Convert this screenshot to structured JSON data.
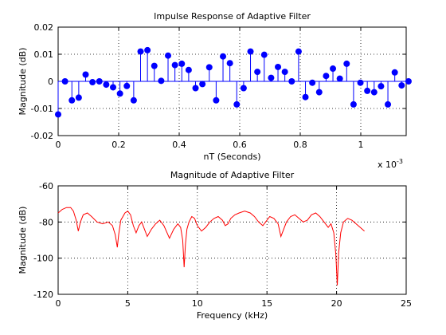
{
  "chart_data": [
    {
      "type": "stem",
      "title": "Impulse Response of Adaptive Filter",
      "xlabel": "nT (Seconds)",
      "ylabel": "Magnitude (dB)",
      "x_exponent": "x 10",
      "x_exponent_power": "-3",
      "xlim": [
        0,
        0.00115
      ],
      "ylim": [
        -0.02,
        0.02
      ],
      "xticks": [
        0,
        0.0002,
        0.0004,
        0.0006,
        0.0008,
        0.001
      ],
      "xtick_labels": [
        "0",
        "0.2",
        "0.4",
        "0.6",
        "0.8",
        "1"
      ],
      "yticks": [
        -0.02,
        -0.01,
        0,
        0.01,
        0.02
      ],
      "ytick_labels": [
        "-0.02",
        "-0.01",
        "0",
        "0.01",
        "0.02"
      ],
      "grid": true,
      "color": "#0000ff",
      "sample_interval": 2.27e-05,
      "values": [
        -0.0122,
        0.0,
        -0.007,
        -0.006,
        0.0025,
        -0.0003,
        0.0,
        -0.0012,
        -0.0022,
        -0.0045,
        -0.0017,
        -0.007,
        0.011,
        0.0115,
        0.0057,
        0.0002,
        0.0095,
        0.006,
        0.0065,
        0.0042,
        -0.0025,
        -0.001,
        0.0052,
        -0.007,
        0.0092,
        0.0067,
        -0.0085,
        -0.0025,
        0.011,
        0.0035,
        0.0098,
        0.0013,
        0.0053,
        0.0035,
        0.0,
        0.011,
        -0.0058,
        -0.0005,
        -0.004,
        0.002,
        0.0047,
        0.001,
        0.0065,
        -0.0085,
        -0.0005,
        -0.0035,
        -0.004,
        -0.0018,
        -0.0085,
        0.0033,
        -0.0015,
        0.0
      ]
    },
    {
      "type": "line",
      "title": "Magnitude of Adaptive Filter",
      "xlabel": "Frequency (kHz)",
      "ylabel": "Magnitude (dB)",
      "xlim": [
        0,
        25
      ],
      "ylim": [
        -120,
        -60
      ],
      "xticks": [
        0,
        5,
        10,
        15,
        20,
        25
      ],
      "xtick_labels": [
        "0",
        "5",
        "10",
        "15",
        "20",
        "25"
      ],
      "yticks": [
        -120,
        -100,
        -80,
        -60
      ],
      "ytick_labels": [
        "-120",
        "-100",
        "-80",
        "-60"
      ],
      "grid": true,
      "color": "#ff0000",
      "x": [
        0,
        0.3,
        0.6,
        0.9,
        1.1,
        1.3,
        1.45,
        1.6,
        1.8,
        2.1,
        2.4,
        2.8,
        3.2,
        3.6,
        3.9,
        4.1,
        4.25,
        4.35,
        4.5,
        4.8,
        5.0,
        5.2,
        5.4,
        5.6,
        5.8,
        6.0,
        6.2,
        6.4,
        6.7,
        7.0,
        7.3,
        7.6,
        8.0,
        8.3,
        8.6,
        8.8,
        8.95,
        9.05,
        9.15,
        9.25,
        9.4,
        9.6,
        9.8,
        10.0,
        10.3,
        10.6,
        10.9,
        11.2,
        11.5,
        11.8,
        12.0,
        12.2,
        12.4,
        12.7,
        13.0,
        13.4,
        13.8,
        14.1,
        14.4,
        14.7,
        14.9,
        15.2,
        15.5,
        15.8,
        16.0,
        16.2,
        16.4,
        16.7,
        17.0,
        17.3,
        17.6,
        17.9,
        18.2,
        18.5,
        18.8,
        19.1,
        19.4,
        19.6,
        19.8,
        19.95,
        20.05,
        20.15,
        20.3,
        20.5,
        20.8,
        21.1,
        21.4,
        21.7,
        22.0
      ],
      "y": [
        -75,
        -73,
        -72,
        -72,
        -74,
        -79,
        -85,
        -80,
        -76,
        -75,
        -77,
        -80,
        -81,
        -80,
        -82,
        -87,
        -94,
        -87,
        -79,
        -75,
        -74,
        -76,
        -82,
        -86,
        -82,
        -80,
        -84,
        -88,
        -84,
        -81,
        -79,
        -82,
        -89,
        -84,
        -81,
        -83,
        -90,
        -105,
        -92,
        -84,
        -80,
        -77,
        -78,
        -82,
        -85,
        -83,
        -80,
        -78,
        -77,
        -79,
        -82,
        -81,
        -78,
        -76,
        -75,
        -74,
        -75,
        -77,
        -80,
        -82,
        -80,
        -77,
        -78,
        -81,
        -88,
        -84,
        -80,
        -77,
        -76,
        -78,
        -80,
        -79,
        -76,
        -75,
        -77,
        -80,
        -83,
        -81,
        -86,
        -98,
        -115,
        -97,
        -86,
        -80,
        -78,
        -79,
        -81,
        -83,
        -85
      ]
    }
  ]
}
